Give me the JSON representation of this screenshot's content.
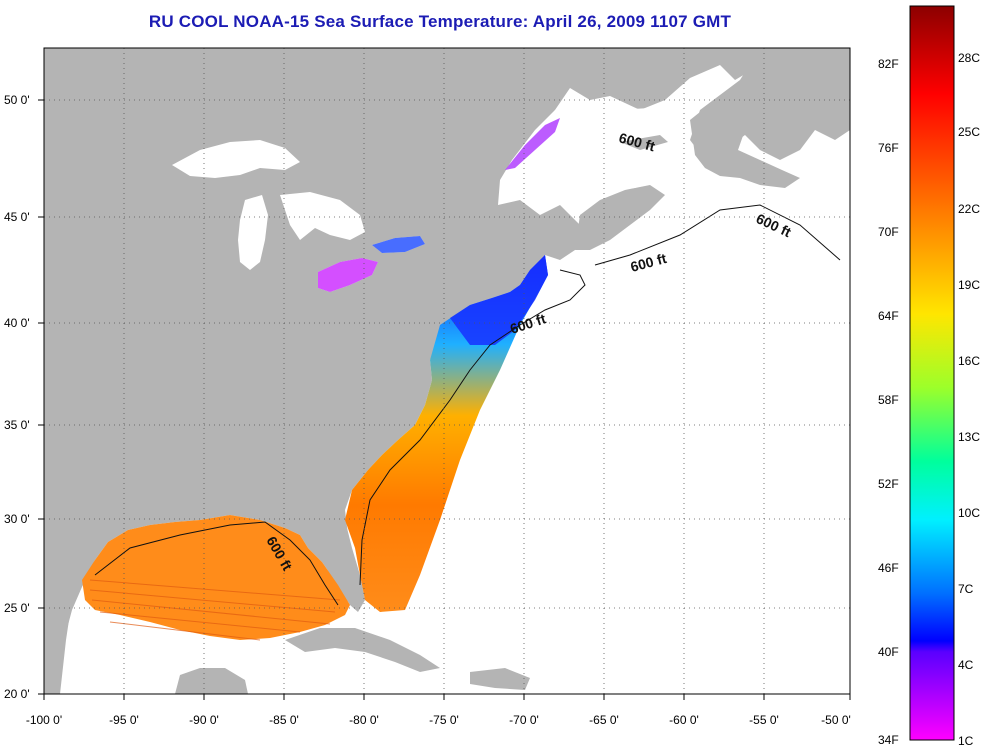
{
  "title": "RU COOL  NOAA-15  Sea Surface Temperature:  April 26, 2009 1107 GMT",
  "map": {
    "x_ticks": [
      "-100 0'",
      "-95 0'",
      "-90 0'",
      "-85 0'",
      "-80 0'",
      "-75 0'",
      "-70 0'",
      "-65 0'",
      "-60 0'",
      "-55 0'",
      "-50 0'"
    ],
    "y_ticks": [
      "50 0'",
      "45 0'",
      "40 0'",
      "35 0'",
      "30 0'",
      "25 0'",
      "20 0'"
    ],
    "lon_range": [
      -100,
      -50
    ],
    "lat_range": [
      20,
      52.5
    ],
    "contour_labels": [
      "600 ft",
      "600 ft",
      "600 ft",
      "600 ft",
      "600 ft"
    ],
    "land_color": "#b4b4b4",
    "ocean_color": "#ffffff",
    "grid": "dotted"
  },
  "colorbar": {
    "fahrenheit_labels": [
      "82F",
      "76F",
      "70F",
      "64F",
      "58F",
      "52F",
      "46F",
      "40F",
      "34F"
    ],
    "celsius_labels": [
      "28C",
      "25C",
      "22C",
      "19C",
      "16C",
      "13C",
      "10C",
      "7C",
      "4C",
      "1C"
    ],
    "colors": [
      "#a00000",
      "#ff0000",
      "#ff8000",
      "#ffe000",
      "#a0ff00",
      "#00ff80",
      "#00ffff",
      "#0080ff",
      "#0000ff",
      "#8000ff",
      "#ff00ff"
    ]
  }
}
